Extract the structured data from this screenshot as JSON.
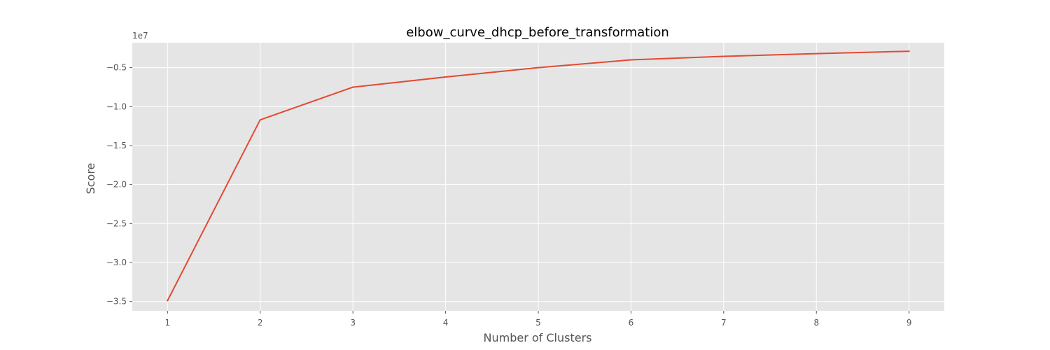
{
  "chart_data": {
    "type": "line",
    "title": "elbow_curve_dhcp_before_transformation",
    "xlabel": "Number of Clusters",
    "ylabel": "Score",
    "y_multiplier_label": "1e7",
    "x_ticks": [
      1,
      2,
      3,
      4,
      5,
      6,
      7,
      8,
      9
    ],
    "y_ticks": [
      -3.5,
      -3.0,
      -2.5,
      -2.0,
      -1.5,
      -1.0,
      -0.5
    ],
    "y_tick_labels": [
      "−3.5",
      "−3.0",
      "−2.5",
      "−2.0",
      "−1.5",
      "−1.0",
      "−0.5"
    ],
    "xlim": [
      0.62,
      9.38
    ],
    "ylim": [
      -3.62,
      -0.18
    ],
    "grid": true,
    "colors": {
      "line": "#E24A33",
      "plot_background": "#E5E5E5",
      "grid": "#FFFFFF"
    },
    "series": [
      {
        "x": [
          1,
          2,
          3,
          4,
          5,
          6,
          7,
          8,
          9
        ],
        "y": [
          -3.49,
          -1.17,
          -0.75,
          -0.62,
          -0.5,
          -0.4,
          -0.355,
          -0.32,
          -0.29
        ]
      }
    ]
  }
}
